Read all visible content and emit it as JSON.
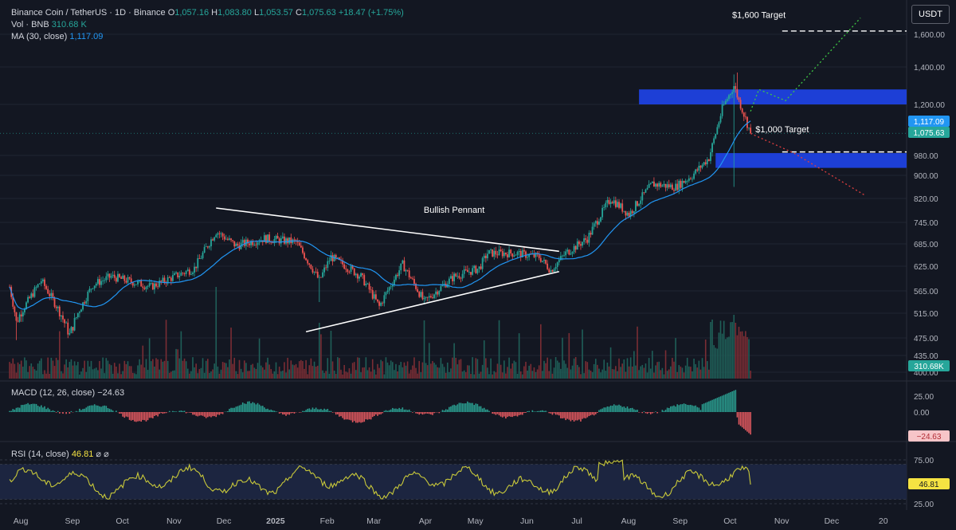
{
  "header": {
    "symbol": "Binance Coin / TetherUS · 1D · Binance",
    "o_label": "O",
    "o": "1,057.16",
    "h_label": "H",
    "h": "1,083.80",
    "l_label": "L",
    "l": "1,053.57",
    "c_label": "C",
    "c": "1,075.63",
    "change": "+18.47 (+1.75%)",
    "vol_label": "Vol · BNB",
    "vol": "310.68 K",
    "ma_label": "MA (30, close)",
    "ma": "1,117.09"
  },
  "currency": "USDT",
  "macd_label": "MACD (12, 26, close)",
  "macd_value": "−24.63",
  "rsi_label": "RSI (14, close)",
  "rsi_value": "46.81",
  "rsi_icons": "⌀ ⌀",
  "colors": {
    "up": "#26a69a",
    "down": "#ef5350",
    "ma": "#2196f3",
    "rsi": "#c9c93a",
    "zone": "#1d3fd6",
    "bg": "#131722"
  },
  "chart_data": {
    "type": "candlestick",
    "price_axis": {
      "ticks": [
        400,
        435,
        475,
        515,
        565,
        625,
        685,
        745,
        820,
        900,
        980,
        1200,
        1400,
        1600
      ],
      "tick_labels": [
        "400.00",
        "435.00",
        "475.00",
        "515.00",
        "565.00",
        "625.00",
        "685.00",
        "745.00",
        "820.00",
        "900.00",
        "980.00",
        "1,200.00",
        "1,400.00",
        "1,600.00"
      ]
    },
    "x_axis": {
      "labels": [
        "Aug",
        "Sep",
        "Oct",
        "Nov",
        "Dec",
        "2025",
        "Feb",
        "Mar",
        "Apr",
        "May",
        "Jun",
        "Jul",
        "Aug",
        "Sep",
        "Oct",
        "Nov",
        "Dec",
        "20"
      ]
    },
    "price_path": [
      [
        "2024-08-01",
        575
      ],
      [
        "2024-08-05",
        500
      ],
      [
        "2024-08-20",
        590
      ],
      [
        "2024-09-06",
        480
      ],
      [
        "2024-09-20",
        580
      ],
      [
        "2024-10-01",
        600
      ],
      [
        "2024-10-25",
        575
      ],
      [
        "2024-11-08",
        600
      ],
      [
        "2024-11-20",
        620
      ],
      [
        "2024-12-03",
        720
      ],
      [
        "2024-12-15",
        680
      ],
      [
        "2025-01-01",
        700
      ],
      [
        "2025-01-20",
        690
      ],
      [
        "2025-02-03",
        590
      ],
      [
        "2025-02-10",
        650
      ],
      [
        "2025-02-28",
        600
      ],
      [
        "2025-03-11",
        530
      ],
      [
        "2025-03-25",
        630
      ],
      [
        "2025-04-07",
        540
      ],
      [
        "2025-04-25",
        600
      ],
      [
        "2025-05-10",
        620
      ],
      [
        "2025-05-15",
        660
      ],
      [
        "2025-06-01",
        660
      ],
      [
        "2025-06-15",
        650
      ],
      [
        "2025-06-22",
        615
      ],
      [
        "2025-07-01",
        660
      ],
      [
        "2025-07-14",
        700
      ],
      [
        "2025-07-28",
        820
      ],
      [
        "2025-08-08",
        770
      ],
      [
        "2025-08-22",
        870
      ],
      [
        "2025-09-05",
        860
      ],
      [
        "2025-09-15",
        900
      ],
      [
        "2025-09-25",
        970
      ],
      [
        "2025-10-03",
        1180
      ],
      [
        "2025-10-10",
        1300
      ],
      [
        "2025-10-13",
        1220
      ],
      [
        "2025-10-20",
        1075.63
      ]
    ],
    "ma30_last": 1117.09,
    "last_close": 1075.63,
    "last_volume": "310.68K",
    "price_labels": {
      "ma": "1,117.09",
      "close": "1,075.63",
      "volume": "310.68K"
    },
    "annotations": [
      {
        "type": "text",
        "text": "Bullish Pennant",
        "date": "2025-04-25",
        "price": 775
      },
      {
        "type": "text",
        "text": "$1,600 Target",
        "date": "2025-10-25",
        "price": 1700
      },
      {
        "type": "text",
        "text": "$1,000 Target",
        "date": "2025-11-08",
        "price": 1080
      },
      {
        "type": "trendline",
        "from": [
          "2024-12-03",
          790
        ],
        "to": [
          "2025-06-27",
          665
        ]
      },
      {
        "type": "trendline",
        "from": [
          "2025-01-26",
          485
        ],
        "to": [
          "2025-06-27",
          612
        ]
      },
      {
        "type": "zone",
        "from_date": "2025-08-14",
        "price_low": 1200,
        "price_high": 1280
      },
      {
        "type": "zone",
        "from_date": "2025-09-29",
        "price_low": 930,
        "price_high": 990
      },
      {
        "type": "level",
        "price": 1620,
        "from_date": "2025-11-08"
      },
      {
        "type": "level",
        "price": 995,
        "from_date": "2025-11-08"
      }
    ],
    "macd": {
      "ticks": [
        25,
        0
      ],
      "tick_labels": [
        "25.00",
        "0.00"
      ],
      "last": -24.63,
      "last_label": "−24.63"
    },
    "rsi": {
      "ticks": [
        75,
        50,
        25
      ],
      "tick_labels": [
        "75.00",
        "50.00",
        "25.00"
      ],
      "last": 46.81,
      "last_label": "46.81",
      "upper": 70,
      "lower": 30
    }
  }
}
